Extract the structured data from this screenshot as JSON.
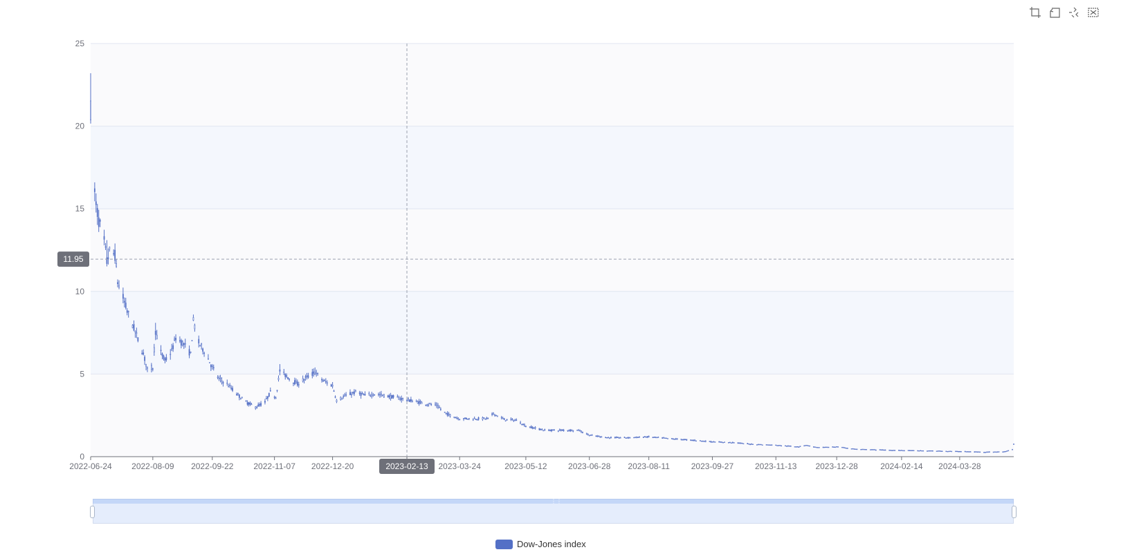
{
  "chart_data": {
    "type": "candlestick",
    "legend": {
      "name": "Dow-Jones index",
      "color": "#5470c6",
      "position": "bottom-center"
    },
    "ylim": [
      0,
      25
    ],
    "y_ticks": [
      "0",
      "5",
      "10",
      "15",
      "20",
      "25"
    ],
    "x_range": [
      "2022-06-24",
      "2024-05-07"
    ],
    "x_ticks": [
      "2022-06-24",
      "2022-08-09",
      "2022-09-22",
      "2022-11-07",
      "2022-12-20",
      "2023-02-13",
      "2023-03-24",
      "2023-05-12",
      "2023-06-28",
      "2023-08-11",
      "2023-09-27",
      "2023-11-13",
      "2023-12-28",
      "2024-02-14",
      "2024-03-28"
    ],
    "x_tick_dates": [
      "2022-06-24",
      "2022-08-09",
      "2022-09-22",
      "2022-11-07",
      "2022-12-20",
      "2023-02-13",
      "2023-03-24",
      "2023-05-12",
      "2023-06-28",
      "2023-08-11",
      "2023-09-27",
      "2023-11-13",
      "2023-12-28",
      "2024-02-14",
      "2024-03-28"
    ],
    "grid": true,
    "price_level": [
      [
        "2022-06-24",
        21.0
      ],
      [
        "2022-06-27",
        16.0
      ],
      [
        "2022-06-28",
        15.2
      ],
      [
        "2022-06-30",
        14.3
      ],
      [
        "2022-07-04",
        13.0
      ],
      [
        "2022-07-06",
        11.8
      ],
      [
        "2022-07-08",
        12.4
      ],
      [
        "2022-07-12",
        12.2
      ],
      [
        "2022-07-14",
        10.6
      ],
      [
        "2022-07-18",
        9.6
      ],
      [
        "2022-07-21",
        8.8
      ],
      [
        "2022-07-25",
        8.0
      ],
      [
        "2022-07-29",
        7.1
      ],
      [
        "2022-08-02",
        6.2
      ],
      [
        "2022-08-05",
        5.3
      ],
      [
        "2022-08-09",
        5.4
      ],
      [
        "2022-08-11",
        7.6
      ],
      [
        "2022-08-15",
        6.3
      ],
      [
        "2022-08-18",
        5.8
      ],
      [
        "2022-08-23",
        6.4
      ],
      [
        "2022-08-26",
        7.2
      ],
      [
        "2022-09-01",
        6.8
      ],
      [
        "2022-09-06",
        6.2
      ],
      [
        "2022-09-08",
        8.2
      ],
      [
        "2022-09-12",
        6.9
      ],
      [
        "2022-09-16",
        6.4
      ],
      [
        "2022-09-22",
        5.4
      ],
      [
        "2022-09-27",
        4.7
      ],
      [
        "2022-10-03",
        4.4
      ],
      [
        "2022-10-10",
        3.8
      ],
      [
        "2022-10-17",
        3.3
      ],
      [
        "2022-10-24",
        3.0
      ],
      [
        "2022-10-31",
        3.3
      ],
      [
        "2022-11-04",
        3.9
      ],
      [
        "2022-11-08",
        3.6
      ],
      [
        "2022-11-11",
        5.2
      ],
      [
        "2022-11-17",
        4.8
      ],
      [
        "2022-11-24",
        4.4
      ],
      [
        "2022-12-01",
        4.8
      ],
      [
        "2022-12-07",
        5.1
      ],
      [
        "2022-12-13",
        4.6
      ],
      [
        "2022-12-20",
        4.3
      ],
      [
        "2022-12-23",
        3.4
      ],
      [
        "2022-12-30",
        3.7
      ],
      [
        "2023-01-06",
        3.9
      ],
      [
        "2023-01-13",
        3.7
      ],
      [
        "2023-01-20",
        3.8
      ],
      [
        "2023-01-27",
        3.7
      ],
      [
        "2023-02-03",
        3.6
      ],
      [
        "2023-02-13",
        3.45
      ],
      [
        "2023-02-24",
        3.25
      ],
      [
        "2023-03-07",
        3.1
      ],
      [
        "2023-03-14",
        2.6
      ],
      [
        "2023-03-24",
        2.3
      ],
      [
        "2023-04-05",
        2.3
      ],
      [
        "2023-04-14",
        2.3
      ],
      [
        "2023-04-18",
        2.6
      ],
      [
        "2023-04-26",
        2.25
      ],
      [
        "2023-05-05",
        2.2
      ],
      [
        "2023-05-12",
        1.85
      ],
      [
        "2023-05-26",
        1.6
      ],
      [
        "2023-06-09",
        1.6
      ],
      [
        "2023-06-20",
        1.6
      ],
      [
        "2023-06-28",
        1.3
      ],
      [
        "2023-07-12",
        1.15
      ],
      [
        "2023-07-26",
        1.15
      ],
      [
        "2023-08-11",
        1.2
      ],
      [
        "2023-08-25",
        1.1
      ],
      [
        "2023-09-12",
        1.0
      ],
      [
        "2023-09-27",
        0.9
      ],
      [
        "2023-10-13",
        0.85
      ],
      [
        "2023-10-27",
        0.75
      ],
      [
        "2023-11-13",
        0.7
      ],
      [
        "2023-11-30",
        0.6
      ],
      [
        "2023-12-05",
        0.7
      ],
      [
        "2023-12-14",
        0.55
      ],
      [
        "2023-12-28",
        0.6
      ],
      [
        "2024-01-12",
        0.45
      ],
      [
        "2024-02-14",
        0.38
      ],
      [
        "2024-03-01",
        0.36
      ],
      [
        "2024-03-28",
        0.32
      ],
      [
        "2024-04-15",
        0.28
      ],
      [
        "2024-04-30",
        0.3
      ],
      [
        "2024-05-06",
        0.45
      ],
      [
        "2024-05-07",
        0.75
      ]
    ],
    "early_highs": [
      [
        "2022-06-24",
        23.2
      ],
      [
        "2022-06-27",
        16.6
      ],
      [
        "2022-07-06",
        13.1
      ],
      [
        "2022-07-12",
        12.9
      ],
      [
        "2022-08-11",
        8.1
      ],
      [
        "2022-09-08",
        8.6
      ],
      [
        "2022-11-11",
        5.6
      ],
      [
        "2022-12-07",
        5.4
      ]
    ],
    "crosshair": {
      "x_label": "2023-02-13",
      "y_value": "11.95"
    }
  },
  "toolbox": {
    "icons": [
      "crop-zoom-icon",
      "zoom-back-icon",
      "restore-icon",
      "save-image-icon"
    ]
  },
  "datazoom": {
    "start_percent": 0,
    "end_percent": 100
  }
}
